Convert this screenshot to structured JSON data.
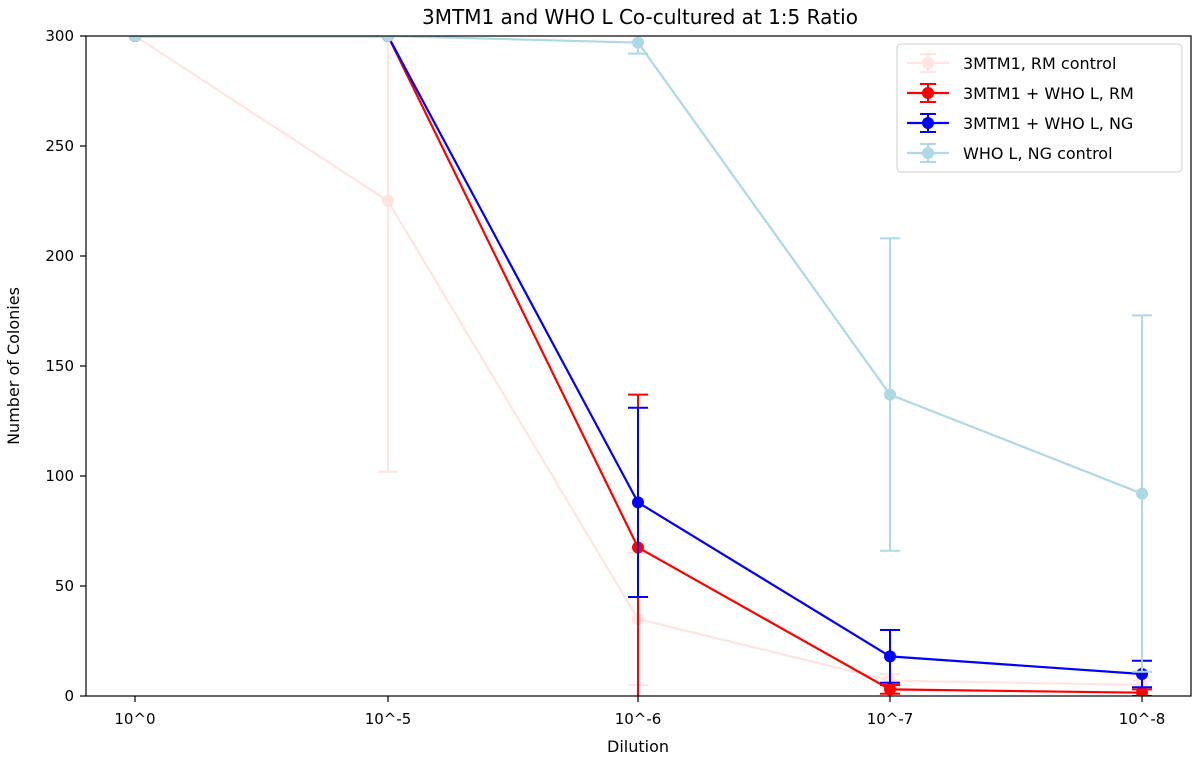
{
  "chart_data": {
    "type": "line",
    "title": "3MTM1 and WHO L Co-cultured at 1:5 Ratio",
    "xlabel": "Dilution",
    "ylabel": "Number of Colonies",
    "categories": [
      "10^0",
      "10^-5",
      "10^-6",
      "10^-7",
      "10^-8"
    ],
    "ylim": [
      0,
      300
    ],
    "yticks": [
      0,
      50,
      100,
      150,
      200,
      250,
      300
    ],
    "legend_position": "top-right",
    "series": [
      {
        "name": "3MTM1, RM control",
        "color": "#ffe4e1",
        "values": [
          300,
          225,
          35,
          7,
          5
        ],
        "errors": [
          0,
          123,
          30,
          3,
          2
        ]
      },
      {
        "name": "3MTM1 + WHO L, RM",
        "color": "#ff0000",
        "values": [
          300,
          300,
          67.5,
          3,
          1.5
        ],
        "errors": [
          0,
          0,
          69.5,
          2,
          1.5
        ]
      },
      {
        "name": "3MTM1 + WHO L, NG",
        "color": "#0000ff",
        "values": [
          300,
          300,
          88,
          18,
          10
        ],
        "errors": [
          0,
          0,
          43,
          12,
          6
        ]
      },
      {
        "name": "WHO L, NG control",
        "color": "#add8e6",
        "values": [
          300,
          300,
          297,
          137,
          92
        ],
        "errors": [
          0,
          0,
          5,
          71,
          81
        ]
      }
    ]
  }
}
